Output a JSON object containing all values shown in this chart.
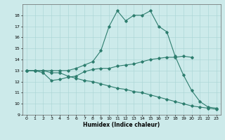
{
  "xlabel": "Humidex (Indice chaleur)",
  "background_color": "#cceaea",
  "line_color": "#2d7d6e",
  "xlim": [
    -0.5,
    23.5
  ],
  "ylim": [
    9,
    19
  ],
  "xticks": [
    0,
    1,
    2,
    3,
    4,
    5,
    6,
    7,
    8,
    9,
    10,
    11,
    12,
    13,
    14,
    15,
    16,
    17,
    18,
    19,
    20,
    21,
    22,
    23
  ],
  "yticks": [
    9,
    10,
    11,
    12,
    13,
    14,
    15,
    16,
    17,
    18
  ],
  "line1_x": [
    0,
    1,
    2,
    3,
    4,
    5,
    6,
    7,
    8,
    9,
    10,
    11,
    12,
    13,
    14,
    15,
    16,
    17,
    18,
    19,
    20,
    21,
    22,
    23
  ],
  "line1_y": [
    13,
    13,
    13,
    13,
    13,
    13,
    13.2,
    13.5,
    13.8,
    14.8,
    17,
    18.4,
    17.5,
    18,
    18,
    18.4,
    17,
    16.5,
    14.3,
    12.6,
    11.2,
    10.2,
    9.7,
    9.6
  ],
  "line2_x": [
    0,
    1,
    2,
    3,
    4,
    5,
    6,
    7,
    8,
    9,
    10,
    11,
    12,
    13,
    14,
    15,
    16,
    17,
    18,
    19,
    20,
    21,
    22,
    23
  ],
  "line2_y": [
    13,
    13,
    13,
    12.8,
    12.8,
    12.5,
    12.3,
    12.1,
    12.0,
    11.8,
    11.6,
    11.4,
    11.3,
    11.1,
    11.0,
    10.8,
    10.6,
    10.4,
    10.2,
    10.0,
    9.8,
    9.7,
    9.6,
    9.5
  ],
  "line3_x": [
    0,
    1,
    2,
    3,
    4,
    5,
    6,
    7,
    8,
    9,
    10,
    11,
    12,
    13,
    14,
    15,
    16,
    17,
    18,
    19,
    20
  ],
  "line3_y": [
    13,
    13,
    12.8,
    12.1,
    12.2,
    12.4,
    12.5,
    12.9,
    13.1,
    13.2,
    13.2,
    13.4,
    13.5,
    13.6,
    13.8,
    14.0,
    14.1,
    14.2,
    14.2,
    14.3,
    14.2
  ]
}
